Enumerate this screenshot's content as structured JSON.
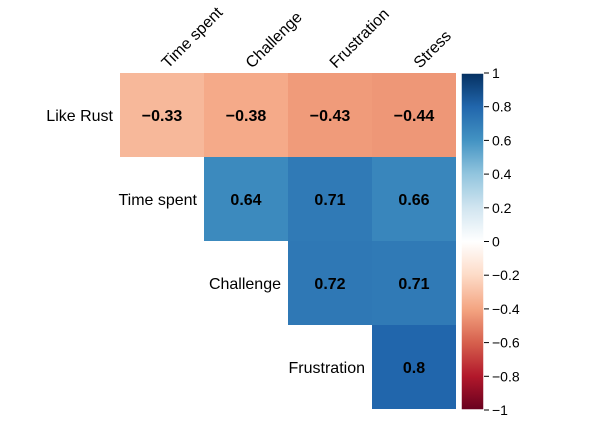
{
  "chart_data": {
    "type": "heatmap",
    "subtype": "correlation-upper-triangle",
    "columns": [
      "Time spent",
      "Challenge",
      "Frustration",
      "Stress"
    ],
    "rows": [
      "Like Rust",
      "Time spent",
      "Challenge",
      "Frustration"
    ],
    "cells": [
      {
        "row": "Like Rust",
        "col": "Time spent",
        "value": -0.33,
        "label": "−0.33"
      },
      {
        "row": "Like Rust",
        "col": "Challenge",
        "value": -0.38,
        "label": "−0.38"
      },
      {
        "row": "Like Rust",
        "col": "Frustration",
        "value": -0.43,
        "label": "−0.43"
      },
      {
        "row": "Like Rust",
        "col": "Stress",
        "value": -0.44,
        "label": "−0.44"
      },
      {
        "row": "Time spent",
        "col": "Challenge",
        "value": 0.64,
        "label": "0.64"
      },
      {
        "row": "Time spent",
        "col": "Frustration",
        "value": 0.71,
        "label": "0.71"
      },
      {
        "row": "Time spent",
        "col": "Stress",
        "value": 0.66,
        "label": "0.66"
      },
      {
        "row": "Challenge",
        "col": "Frustration",
        "value": 0.72,
        "label": "0.72"
      },
      {
        "row": "Challenge",
        "col": "Stress",
        "value": 0.71,
        "label": "0.71"
      },
      {
        "row": "Frustration",
        "col": "Stress",
        "value": 0.8,
        "label": "0.8"
      }
    ],
    "colorbar": {
      "range": [
        -1,
        1
      ],
      "ticks": [
        {
          "value": 1,
          "label": "1"
        },
        {
          "value": 0.8,
          "label": "0.8"
        },
        {
          "value": 0.6,
          "label": "0.6"
        },
        {
          "value": 0.4,
          "label": "0.4"
        },
        {
          "value": 0.2,
          "label": "0.2"
        },
        {
          "value": 0,
          "label": "0"
        },
        {
          "value": -0.2,
          "label": "−0.2"
        },
        {
          "value": -0.4,
          "label": "−0.4"
        },
        {
          "value": -0.6,
          "label": "−0.6"
        },
        {
          "value": -0.8,
          "label": "−0.8"
        },
        {
          "value": -1,
          "label": "−1"
        }
      ],
      "colors": {
        "negative_end": "#67001F",
        "zero": "#FFFFFF",
        "positive_end": "#053061"
      },
      "stops": [
        {
          "value": -1.0,
          "color": "#67001F"
        },
        {
          "value": -0.8,
          "color": "#B2182B"
        },
        {
          "value": -0.6,
          "color": "#D6604D"
        },
        {
          "value": -0.4,
          "color": "#F4A582"
        },
        {
          "value": -0.2,
          "color": "#FDDBC7"
        },
        {
          "value": 0.0,
          "color": "#FFFFFF"
        },
        {
          "value": 0.2,
          "color": "#D1E5F0"
        },
        {
          "value": 0.4,
          "color": "#92C5DE"
        },
        {
          "value": 0.6,
          "color": "#4393C3"
        },
        {
          "value": 0.8,
          "color": "#2166AC"
        },
        {
          "value": 1.0,
          "color": "#053061"
        }
      ]
    },
    "title": "",
    "legend_position": "right"
  }
}
